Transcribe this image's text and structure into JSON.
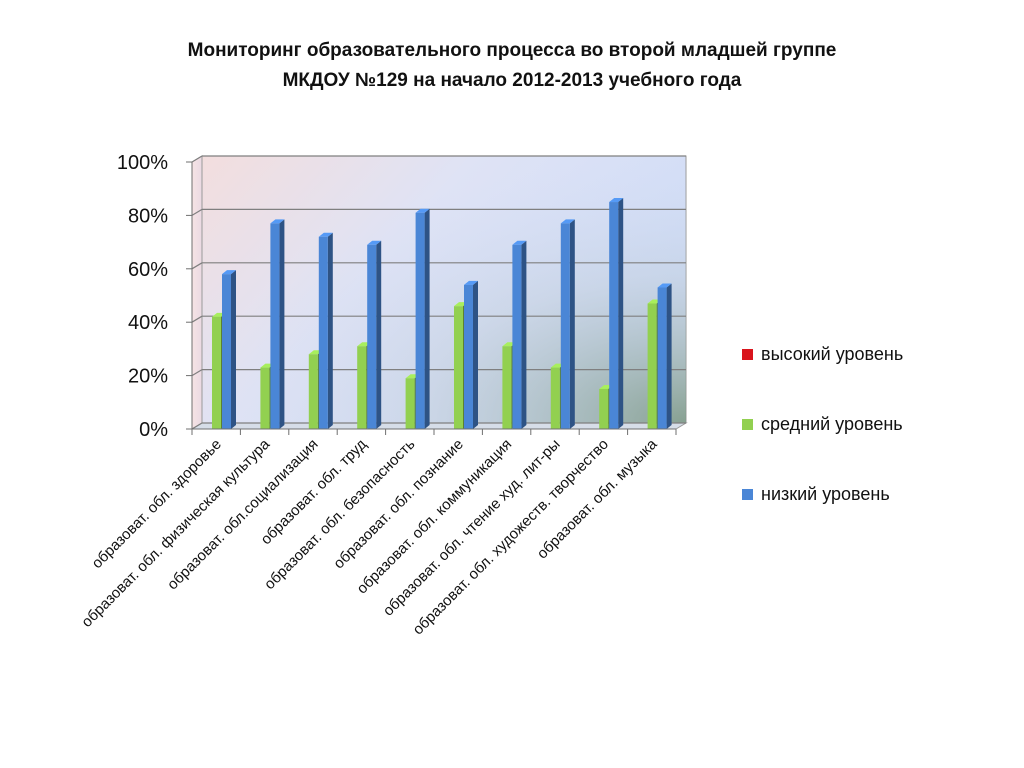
{
  "title_lines": [
    "Мониторинг образовательного процесса во второй младшей группе",
    "МКДОУ №129 на начало 2012-2013 учебного года"
  ],
  "chart_data": {
    "type": "bar",
    "title": "Мониторинг образовательного процесса во второй младшей группе МКДОУ №129 на начало 2012-2013 учебного года",
    "categories": [
      "образоват. обл. здоровье",
      "образоват. обл. физическая культура",
      "образоват. обл.социализация",
      "образоват. обл. труд",
      "образоват. обл. безопасность",
      "образоват. обл. познание",
      "образоват. обл. коммуникация",
      "образоват. обл. чтение худ. лит-ры",
      "образоват. обл. художеств. творчество",
      "образоват. обл. музыка"
    ],
    "series": [
      {
        "name": "высокий уровень",
        "color": "#d9141c",
        "values": [
          0,
          0,
          0,
          0,
          0,
          0,
          0,
          0,
          0,
          0
        ]
      },
      {
        "name": "средний уровень",
        "color": "#92d050",
        "values": [
          42,
          23,
          28,
          31,
          19,
          46,
          31,
          23,
          15,
          47
        ]
      },
      {
        "name": "низкий уровень",
        "color": "#4a86d6",
        "values": [
          58,
          77,
          72,
          69,
          81,
          54,
          69,
          77,
          85,
          53
        ]
      }
    ],
    "ylim": [
      0,
      100
    ],
    "yticks": [
      "0%",
      "20%",
      "40%",
      "60%",
      "80%",
      "100%"
    ],
    "grid": true,
    "legend_position": "right",
    "three_d": true
  }
}
